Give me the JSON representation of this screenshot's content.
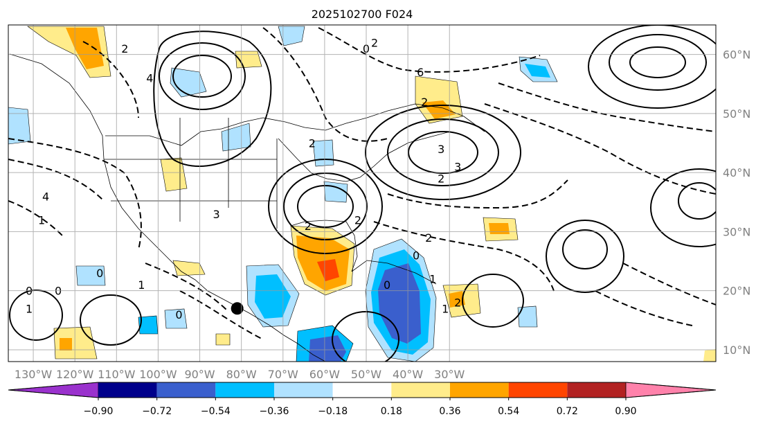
{
  "chart_data": {
    "type": "contour map",
    "title": "2025102700 F024",
    "x_axis": {
      "range": [
        -136,
        34
      ],
      "range_unit": "degrees longitude (negative = West)",
      "ticks": [
        -130,
        -120,
        -110,
        -100,
        -90,
        -80,
        -70,
        -60,
        -50,
        -40,
        -30
      ],
      "tick_labels": [
        "130°W",
        "120°W",
        "110°W",
        "100°W",
        "90°W",
        "80°W",
        "70°W",
        "60°W",
        "50°W",
        "40°W",
        "30°W"
      ]
    },
    "y_axis": {
      "range": [
        8,
        65
      ],
      "range_unit": "degrees latitude North",
      "ticks": [
        10,
        20,
        30,
        40,
        50,
        60
      ],
      "tick_labels": [
        "10°N",
        "20°N",
        "30°N",
        "40°N",
        "50°N",
        "60°N"
      ]
    },
    "grid": true,
    "colorbar": {
      "placement": "bottom",
      "extend": "both",
      "bounds": [
        -0.9,
        -0.72,
        -0.54,
        -0.36,
        -0.18,
        0.18,
        0.36,
        0.54,
        0.72,
        0.9
      ],
      "tick_labels": [
        "−0.90",
        "−0.72",
        "−0.54",
        "−0.36",
        "−0.18",
        "0.18",
        "0.36",
        "0.54",
        "0.72",
        "0.90"
      ],
      "colors": [
        "#9a32cd",
        "#00008b",
        "#3a5fcd",
        "#00bfff",
        "#b0e2ff",
        "#ffffff",
        "#ffec8b",
        "#ffa500",
        "#ff4500",
        "#b22222",
        "#ff82ab"
      ]
    },
    "shaded_regions": [
      {
        "lon": -54,
        "lat": 31,
        "value": 0.4
      },
      {
        "lon": -70,
        "lat": 20,
        "value": -0.6
      },
      {
        "lon": -89,
        "lat": 23,
        "value": 0.45
      }
    ],
    "contour_labels": [
      {
        "lon": -131,
        "lat": 17,
        "text": "1"
      },
      {
        "lon": -131,
        "lat": 20,
        "text": "0"
      },
      {
        "lon": -124,
        "lat": 20,
        "text": "0"
      },
      {
        "lon": -102,
        "lat": 56,
        "text": "4"
      },
      {
        "lon": -108,
        "lat": 61,
        "text": "2"
      },
      {
        "lon": -86,
        "lat": 33,
        "text": "3"
      },
      {
        "lon": -63,
        "lat": 45,
        "text": "2"
      },
      {
        "lon": -48,
        "lat": 62,
        "text": "2"
      },
      {
        "lon": -50,
        "lat": 61,
        "text": "0"
      },
      {
        "lon": -37,
        "lat": 57,
        "text": "6"
      },
      {
        "lon": -36,
        "lat": 52,
        "text": "2"
      },
      {
        "lon": -52,
        "lat": 32,
        "text": "2"
      },
      {
        "lon": -35,
        "lat": 29,
        "text": "2"
      },
      {
        "lon": -38,
        "lat": 26,
        "text": "0"
      },
      {
        "lon": -34,
        "lat": 22,
        "text": "1"
      },
      {
        "lon": -31,
        "lat": 17,
        "text": "1"
      },
      {
        "lon": -28,
        "lat": 18,
        "text": "2"
      },
      {
        "lon": -32,
        "lat": 44,
        "text": "3"
      },
      {
        "lon": -28,
        "lat": 41,
        "text": "3"
      },
      {
        "lon": -32,
        "lat": 39,
        "text": "2"
      },
      {
        "lon": -127,
        "lat": 36,
        "text": "4"
      },
      {
        "lon": -128,
        "lat": 32,
        "text": "1"
      },
      {
        "lon": -104,
        "lat": 21,
        "text": "1"
      },
      {
        "lon": -95,
        "lat": 16,
        "text": "0"
      },
      {
        "lon": -114,
        "lat": 23,
        "text": "0"
      },
      {
        "lon": -45,
        "lat": 21,
        "text": "0"
      },
      {
        "lon": -64,
        "lat": 31,
        "text": "2"
      }
    ],
    "markers": [
      {
        "lon": -81,
        "lat": 17,
        "shape": "filled circle"
      }
    ]
  }
}
